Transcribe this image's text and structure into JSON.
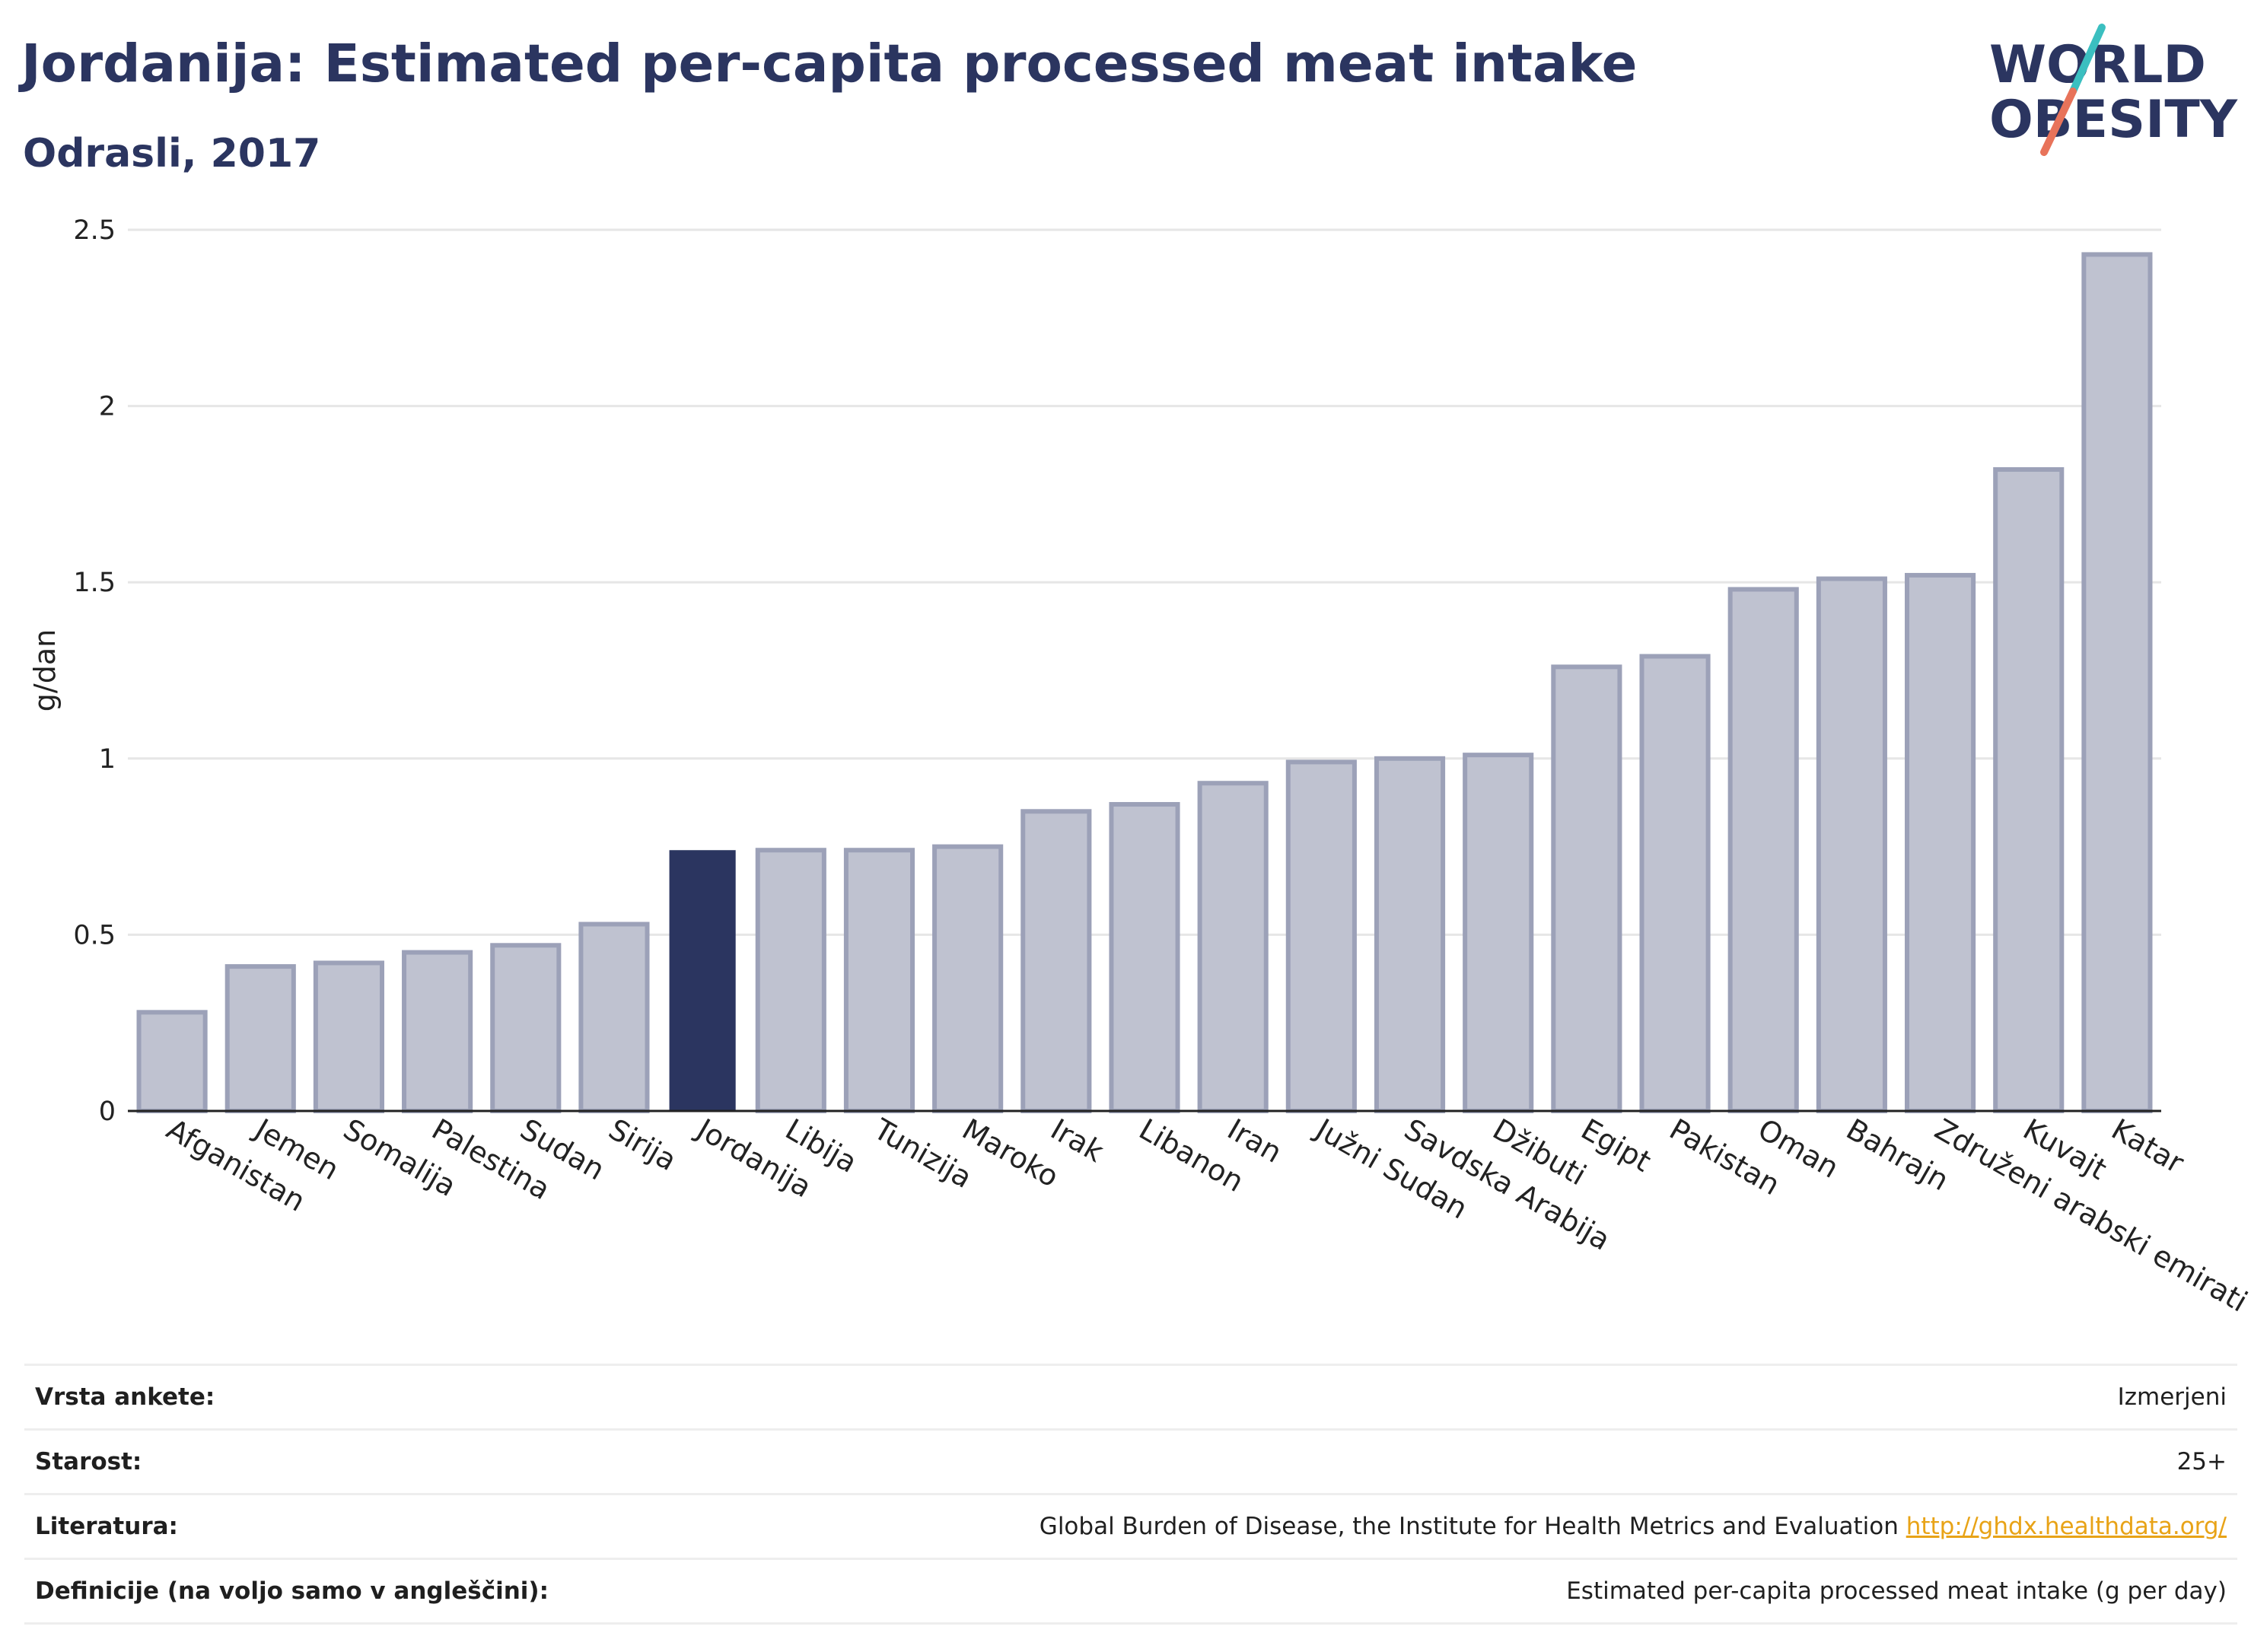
{
  "header": {
    "title": "Jordanija: Estimated per-capita processed meat intake",
    "subtitle": "Odrasli, 2017"
  },
  "logo": {
    "line1": "WORLD",
    "line2": "OBESITY",
    "slash_colors": [
      "#3bbfc0",
      "#e8735a"
    ],
    "text_color": "#2b3560"
  },
  "colors": {
    "bar_default": "#bfc2d0",
    "bar_border": "#9ca1b8",
    "bar_highlight": "#2b3560",
    "grid": "#e6e6e6",
    "link": "#e8a317"
  },
  "chart_data": {
    "type": "bar",
    "title": "",
    "xlabel": "",
    "ylabel": "g/dan",
    "ylim": [
      0,
      2.5
    ],
    "yticks": [
      0,
      0.5,
      1,
      1.5,
      2,
      2.5
    ],
    "ytick_labels": [
      "0",
      "0.5",
      "1",
      "1.5",
      "2",
      "2.5"
    ],
    "grid": true,
    "highlight": "Jordanija",
    "categories": [
      "Afganistan",
      "Jemen",
      "Somalija",
      "Palestina",
      "Sudan",
      "Sirija",
      "Jordanija",
      "Libija",
      "Tunizija",
      "Maroko",
      "Irak",
      "Libanon",
      "Iran",
      "Južni Sudan",
      "Savdska Arabija",
      "Džibuti",
      "Egipt",
      "Pakistan",
      "Oman",
      "Bahrajn",
      "Združeni arabski emirati",
      "Kuvajt",
      "Katar"
    ],
    "values": [
      0.28,
      0.41,
      0.42,
      0.45,
      0.47,
      0.53,
      0.74,
      0.74,
      0.74,
      0.75,
      0.85,
      0.87,
      0.93,
      0.99,
      1.0,
      1.01,
      1.26,
      1.29,
      1.48,
      1.51,
      1.52,
      1.82,
      2.43
    ]
  },
  "info_table": {
    "rows": [
      {
        "key": "Vrsta ankete:",
        "value": "Izmerjeni"
      },
      {
        "key": "Starost:",
        "value": "25+"
      },
      {
        "key": "Literatura:",
        "value": "Global Burden of Disease, the Institute for Health Metrics and Evaluation",
        "link": "http://ghdx.healthdata.org/"
      },
      {
        "key": "Definicije (na voljo samo v angleščini):",
        "value": "Estimated per-capita processed meat intake (g per day)"
      }
    ]
  }
}
